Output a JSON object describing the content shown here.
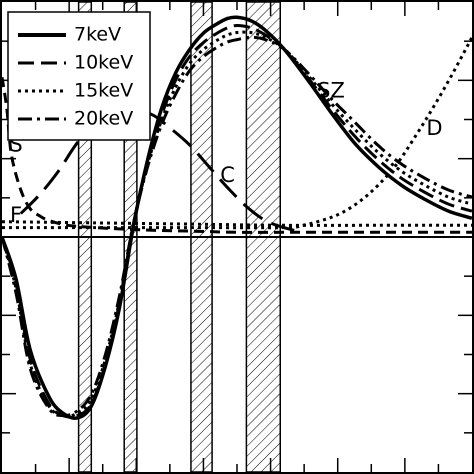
{
  "chart_data": {
    "type": "line",
    "title": "",
    "xlabel": "",
    "ylabel": "",
    "xlim": [
      0,
      1
    ],
    "ylim": [
      -1,
      1
    ],
    "grid": false,
    "legend_position": "top-left",
    "zero_line": 0,
    "bands": [
      [
        0.163,
        0.19
      ],
      [
        0.26,
        0.287
      ],
      [
        0.402,
        0.447
      ],
      [
        0.52,
        0.592
      ]
    ],
    "series": [
      {
        "name": "7keV",
        "style": "solid",
        "x": [
          0,
          0.03,
          0.06,
          0.1,
          0.13,
          0.16,
          0.19,
          0.22,
          0.25,
          0.28,
          0.31,
          0.34,
          0.37,
          0.4,
          0.43,
          0.46,
          0.48,
          0.5,
          0.53,
          0.56,
          0.6,
          0.65,
          0.7,
          0.75,
          0.8,
          0.85,
          0.9,
          0.95,
          1.0
        ],
        "y": [
          0.0,
          -0.18,
          -0.48,
          -0.68,
          -0.75,
          -0.77,
          -0.72,
          -0.55,
          -0.3,
          0.05,
          0.33,
          0.55,
          0.7,
          0.8,
          0.87,
          0.91,
          0.93,
          0.935,
          0.92,
          0.88,
          0.8,
          0.67,
          0.53,
          0.4,
          0.3,
          0.22,
          0.16,
          0.11,
          0.08
        ]
      },
      {
        "name": "10keV",
        "style": "dashed",
        "x": [
          0,
          0.03,
          0.06,
          0.1,
          0.13,
          0.16,
          0.19,
          0.22,
          0.25,
          0.28,
          0.31,
          0.34,
          0.37,
          0.4,
          0.43,
          0.46,
          0.48,
          0.5,
          0.53,
          0.56,
          0.6,
          0.65,
          0.7,
          0.75,
          0.8,
          0.85,
          0.9,
          0.95,
          1.0
        ],
        "y": [
          0.0,
          -0.2,
          -0.52,
          -0.71,
          -0.76,
          -0.76,
          -0.71,
          -0.54,
          -0.28,
          0.06,
          0.32,
          0.52,
          0.67,
          0.77,
          0.83,
          0.87,
          0.89,
          0.9,
          0.89,
          0.86,
          0.8,
          0.68,
          0.55,
          0.43,
          0.33,
          0.25,
          0.19,
          0.14,
          0.11
        ]
      },
      {
        "name": "15keV",
        "style": "dotted",
        "x": [
          0,
          0.03,
          0.06,
          0.1,
          0.13,
          0.16,
          0.19,
          0.22,
          0.25,
          0.28,
          0.31,
          0.34,
          0.37,
          0.4,
          0.43,
          0.46,
          0.48,
          0.5,
          0.53,
          0.56,
          0.6,
          0.65,
          0.7,
          0.75,
          0.8,
          0.85,
          0.9,
          0.95,
          1.0
        ],
        "y": [
          0.0,
          -0.22,
          -0.54,
          -0.72,
          -0.76,
          -0.75,
          -0.69,
          -0.52,
          -0.27,
          0.06,
          0.31,
          0.5,
          0.64,
          0.74,
          0.8,
          0.84,
          0.86,
          0.87,
          0.87,
          0.85,
          0.8,
          0.69,
          0.57,
          0.46,
          0.36,
          0.28,
          0.22,
          0.17,
          0.14
        ]
      },
      {
        "name": "20keV",
        "style": "dash-dot",
        "x": [
          0,
          0.03,
          0.06,
          0.1,
          0.13,
          0.16,
          0.19,
          0.22,
          0.25,
          0.28,
          0.31,
          0.34,
          0.37,
          0.4,
          0.43,
          0.46,
          0.48,
          0.5,
          0.53,
          0.56,
          0.6,
          0.65,
          0.7,
          0.75,
          0.8,
          0.85,
          0.9,
          0.95,
          1.0
        ],
        "y": [
          0.0,
          -0.24,
          -0.56,
          -0.73,
          -0.76,
          -0.74,
          -0.67,
          -0.5,
          -0.25,
          0.06,
          0.3,
          0.48,
          0.61,
          0.71,
          0.77,
          0.81,
          0.83,
          0.84,
          0.85,
          0.84,
          0.8,
          0.7,
          0.59,
          0.49,
          0.39,
          0.31,
          0.25,
          0.2,
          0.17
        ]
      },
      {
        "name": "",
        "style": "long-dash",
        "x": [
          0.04,
          0.08,
          0.12,
          0.16,
          0.2,
          0.24,
          0.28,
          0.32,
          0.36,
          0.4,
          0.44,
          0.48,
          0.52,
          0.56,
          0.6,
          0.64
        ],
        "y": [
          0.1,
          0.18,
          0.28,
          0.4,
          0.48,
          0.53,
          0.54,
          0.52,
          0.46,
          0.39,
          0.3,
          0.21,
          0.13,
          0.07,
          0.04,
          0.02
        ]
      },
      {
        "name": "",
        "style": "short-dash",
        "x": [
          0,
          0.01,
          0.02,
          0.04,
          0.06,
          0.08,
          0.1,
          0.14,
          0.2,
          0.3,
          0.4,
          0.5,
          0.6,
          0.7,
          0.8,
          0.9,
          1.0
        ],
        "y": [
          0.68,
          0.55,
          0.35,
          0.2,
          0.12,
          0.09,
          0.07,
          0.05,
          0.04,
          0.03,
          0.025,
          0.02,
          0.02,
          0.02,
          0.02,
          0.02,
          0.02
        ]
      },
      {
        "name": "",
        "style": "dotted",
        "x": [
          0.0,
          0.2,
          0.4,
          0.6,
          0.64,
          0.68,
          0.72,
          0.76,
          0.8,
          0.84,
          0.88,
          0.92,
          0.96,
          1.0
        ],
        "y": [
          0.04,
          0.04,
          0.04,
          0.04,
          0.05,
          0.07,
          0.1,
          0.15,
          0.22,
          0.31,
          0.43,
          0.56,
          0.7,
          0.85
        ]
      },
      {
        "name": "",
        "style": "dotted",
        "x": [
          0.0,
          0.2,
          0.4,
          0.6,
          0.8,
          1.0
        ],
        "y": [
          0.065,
          0.06,
          0.055,
          0.05,
          0.05,
          0.05
        ]
      }
    ],
    "annotations": [
      {
        "text": "SZ",
        "x": 0.7,
        "y": 0.62
      },
      {
        "text": "D",
        "x": 0.92,
        "y": 0.46
      },
      {
        "text": "S",
        "x": 0.03,
        "y": 0.39
      },
      {
        "text": "C",
        "x": 0.48,
        "y": 0.26
      },
      {
        "text": "F",
        "x": 0.03,
        "y": 0.09
      }
    ]
  }
}
